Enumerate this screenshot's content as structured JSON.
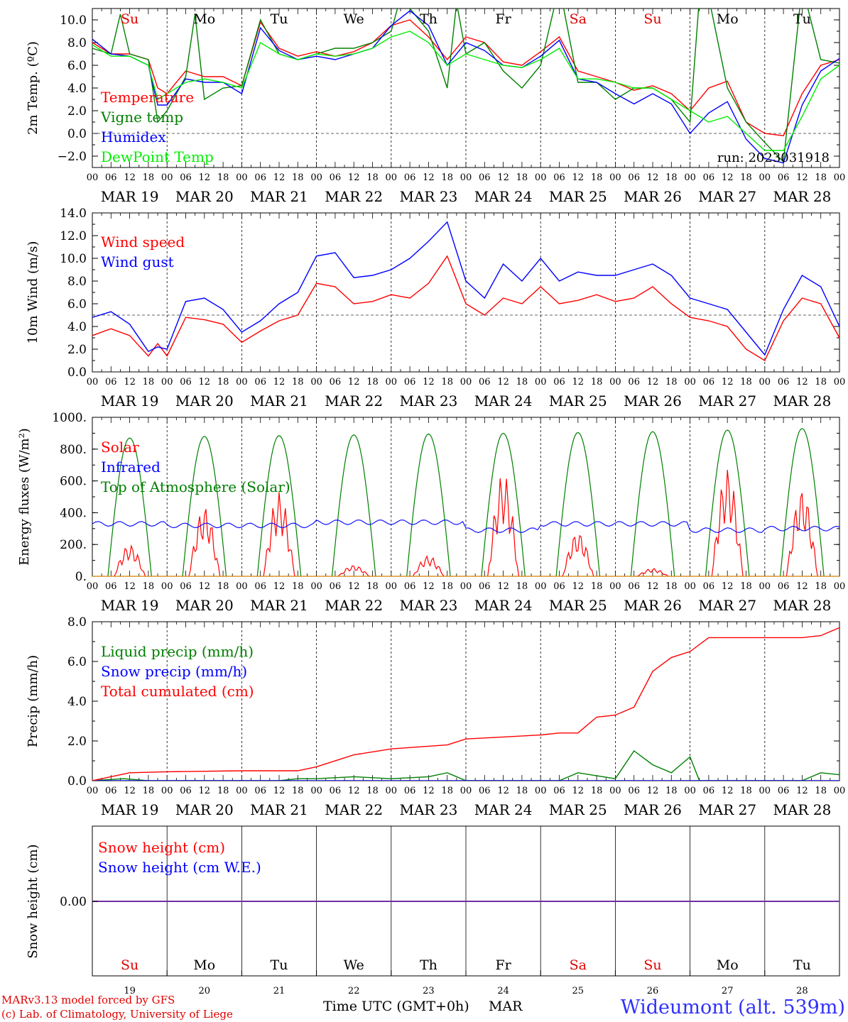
{
  "days": [
    "MAR 19",
    "MAR 20",
    "MAR 21",
    "MAR 22",
    "MAR 23",
    "MAR 24",
    "MAR 25",
    "MAR 26",
    "MAR 27",
    "MAR 28"
  ],
  "hour_ticks": [
    "00",
    "06",
    "12",
    "18"
  ],
  "hour_end": "00",
  "weekdays": [
    {
      "label": "Su",
      "color": "#e00000"
    },
    {
      "label": "Mo",
      "color": "#000000"
    },
    {
      "label": "Tu",
      "color": "#000000"
    },
    {
      "label": "We",
      "color": "#000000"
    },
    {
      "label": "Th",
      "color": "#000000"
    },
    {
      "label": "Fr",
      "color": "#000000"
    },
    {
      "label": "Sa",
      "color": "#e00000"
    },
    {
      "label": "Su",
      "color": "#e00000"
    },
    {
      "label": "Mo",
      "color": "#000000"
    },
    {
      "label": "Tu",
      "color": "#000000"
    }
  ],
  "day_numbers": [
    "19",
    "20",
    "21",
    "22",
    "23",
    "24",
    "25",
    "26",
    "27",
    "28"
  ],
  "colors": {
    "red": "#ff0000",
    "green": "#008000",
    "blue": "#0000ff",
    "lightgreen": "#00ee00",
    "purple": "#7030a0"
  },
  "footer": {
    "credit1": "MARv3.13 model forced by GFS",
    "credit2": "(c) Lab. of Climatology, University of Liege",
    "xlabel": "Time UTC (GMT+0h)",
    "month": "MAR",
    "station": "Wideumont (alt. 539m)"
  },
  "chart_data": [
    {
      "type": "line",
      "ylabel": "2m Temp. (ºC)",
      "ylim": [
        -3,
        11
      ],
      "yticks": [
        "−2.0",
        "0.0",
        "2.0",
        "4.0",
        "6.0",
        "8.0",
        "10.0"
      ],
      "ytick_values": [
        -2,
        0,
        2,
        4,
        6,
        8,
        10
      ],
      "reference_line": 0,
      "annotation": "run: 2023031918",
      "x_unit": "hours since MAR 19 00 UTC",
      "series": [
        {
          "name": "Temperature",
          "color": "#ff0000",
          "x": [
            0,
            6,
            12,
            18,
            21,
            24,
            30,
            36,
            42,
            48,
            54,
            60,
            66,
            72,
            78,
            84,
            90,
            96,
            102,
            108,
            114,
            120,
            126,
            132,
            138,
            144,
            150,
            156,
            162,
            168,
            174,
            180,
            186,
            192,
            198,
            204,
            210,
            216,
            222,
            228,
            234,
            240
          ],
          "y": [
            8.0,
            7.0,
            7.0,
            6.5,
            4.0,
            3.5,
            5.5,
            5.0,
            5.0,
            4.2,
            9.8,
            7.5,
            6.8,
            7.2,
            6.8,
            7.2,
            8.0,
            9.5,
            10.0,
            8.5,
            6.5,
            8.5,
            8.0,
            6.3,
            6.0,
            7.2,
            8.5,
            5.5,
            5.0,
            4.5,
            3.8,
            4.2,
            3.5,
            2.0,
            4.0,
            4.6,
            1.0,
            0.0,
            -0.2,
            3.5,
            6.0,
            6.5
          ]
        },
        {
          "name": "Vigne temp",
          "color": "#008000",
          "x": [
            0,
            6,
            9,
            12,
            18,
            21,
            24,
            30,
            33,
            36,
            42,
            48,
            54,
            60,
            66,
            72,
            78,
            84,
            90,
            96,
            99,
            102,
            108,
            114,
            117,
            120,
            126,
            132,
            138,
            144,
            150,
            156,
            162,
            168,
            174,
            180,
            186,
            192,
            195,
            198,
            204,
            210,
            216,
            222,
            228,
            234,
            240
          ],
          "y": [
            7.5,
            7.0,
            10.5,
            7.0,
            6.5,
            1.0,
            2.0,
            5.0,
            10.5,
            3.0,
            4.0,
            4.2,
            10.0,
            7.0,
            6.5,
            7.0,
            7.5,
            7.5,
            8.0,
            9.0,
            12.0,
            11.0,
            9.0,
            4.0,
            11.5,
            7.0,
            8.0,
            5.5,
            4.0,
            6.0,
            13.0,
            4.5,
            4.5,
            3.0,
            4.0,
            4.0,
            3.0,
            1.0,
            12.0,
            12.0,
            4.0,
            1.0,
            -0.8,
            -2.5,
            13.0,
            6.5,
            6.2
          ]
        },
        {
          "name": "Humidex",
          "color": "#0000ff",
          "x": [
            0,
            6,
            12,
            18,
            21,
            24,
            30,
            36,
            42,
            48,
            54,
            60,
            66,
            72,
            78,
            84,
            90,
            96,
            102,
            108,
            114,
            120,
            126,
            132,
            138,
            144,
            150,
            156,
            162,
            168,
            174,
            180,
            186,
            192,
            198,
            204,
            210,
            216,
            222,
            228,
            234,
            240
          ],
          "y": [
            8.3,
            7.0,
            6.8,
            6.0,
            2.5,
            2.5,
            4.8,
            4.5,
            4.5,
            3.5,
            9.3,
            7.3,
            6.5,
            6.8,
            6.5,
            7.0,
            7.5,
            9.5,
            10.8,
            9.5,
            6.0,
            8.0,
            7.3,
            6.0,
            5.8,
            6.8,
            8.2,
            4.8,
            4.5,
            3.5,
            2.6,
            3.5,
            2.6,
            0.0,
            1.8,
            2.8,
            -0.5,
            -2.2,
            -2.6,
            2.5,
            5.5,
            6.6
          ]
        },
        {
          "name": "DewPoint Temp",
          "color": "#00ee00",
          "x": [
            0,
            6,
            12,
            18,
            21,
            24,
            30,
            36,
            42,
            48,
            54,
            60,
            66,
            72,
            78,
            84,
            90,
            96,
            102,
            108,
            114,
            120,
            126,
            132,
            138,
            144,
            150,
            156,
            162,
            168,
            174,
            180,
            186,
            192,
            198,
            204,
            210,
            216,
            222,
            228,
            234,
            240
          ],
          "y": [
            7.8,
            6.8,
            6.8,
            6.0,
            3.0,
            3.5,
            4.5,
            4.8,
            4.5,
            4.0,
            8.0,
            7.0,
            6.5,
            7.0,
            6.8,
            7.0,
            7.5,
            8.5,
            9.0,
            8.0,
            6.0,
            7.0,
            6.5,
            6.0,
            5.8,
            6.5,
            7.5,
            4.8,
            4.8,
            4.5,
            4.0,
            4.0,
            3.0,
            2.0,
            1.0,
            1.5,
            0.0,
            -1.5,
            -1.5,
            1.5,
            4.8,
            6.0
          ]
        }
      ]
    },
    {
      "type": "line",
      "ylabel": "10m Wind (m/s)",
      "ylim": [
        0,
        14
      ],
      "yticks": [
        "0.0",
        "2.0",
        "4.0",
        "6.0",
        "8.0",
        "10.0",
        "12.0",
        "14.0"
      ],
      "ytick_values": [
        0,
        2,
        4,
        6,
        8,
        10,
        12,
        14
      ],
      "reference_line": 5,
      "x_unit": "hours since MAR 19 00 UTC",
      "series": [
        {
          "name": "Wind speed",
          "color": "#ff0000",
          "x": [
            0,
            6,
            12,
            18,
            21,
            24,
            30,
            36,
            42,
            48,
            54,
            60,
            66,
            72,
            78,
            84,
            90,
            96,
            102,
            108,
            114,
            120,
            126,
            132,
            138,
            144,
            150,
            156,
            162,
            168,
            174,
            180,
            186,
            192,
            198,
            204,
            210,
            216,
            222,
            228,
            234,
            240
          ],
          "y": [
            3.2,
            3.8,
            3.2,
            1.4,
            2.5,
            1.4,
            4.8,
            4.6,
            4.2,
            2.6,
            3.6,
            4.5,
            5.0,
            7.8,
            7.5,
            6.0,
            6.2,
            6.8,
            6.5,
            7.8,
            10.2,
            6.0,
            5.0,
            6.5,
            6.0,
            7.5,
            6.0,
            6.3,
            6.8,
            6.2,
            6.5,
            7.5,
            6.0,
            4.8,
            4.5,
            4.0,
            2.0,
            1.0,
            4.5,
            6.5,
            6.0,
            3.0
          ]
        },
        {
          "name": "Wind gust",
          "color": "#0000ff",
          "x": [
            0,
            6,
            12,
            18,
            21,
            24,
            30,
            36,
            42,
            48,
            54,
            60,
            66,
            72,
            78,
            84,
            90,
            96,
            102,
            108,
            114,
            120,
            126,
            132,
            138,
            144,
            150,
            156,
            162,
            168,
            174,
            180,
            186,
            192,
            198,
            204,
            210,
            216,
            222,
            228,
            234,
            240
          ],
          "y": [
            4.8,
            5.3,
            4.2,
            1.8,
            2.2,
            2.0,
            6.2,
            6.5,
            5.5,
            3.5,
            4.5,
            6.0,
            7.0,
            10.2,
            10.5,
            8.3,
            8.5,
            9.0,
            10.0,
            11.5,
            13.2,
            8.0,
            6.5,
            9.5,
            8.0,
            10.0,
            8.0,
            8.8,
            8.5,
            8.5,
            9.0,
            9.5,
            8.5,
            6.5,
            6.0,
            5.5,
            3.5,
            1.5,
            5.5,
            8.5,
            7.5,
            4.0
          ]
        }
      ]
    },
    {
      "type": "line",
      "ylabel": "Energy fluxes (W/m²)",
      "ylim": [
        0,
        1000
      ],
      "yticks": [
        "0.",
        "200.",
        "400.",
        "600.",
        "800.",
        "1000."
      ],
      "ytick_values": [
        0,
        200,
        400,
        600,
        800,
        1000
      ],
      "x_unit": "hours since MAR 19 00 UTC",
      "toa_peaks": [
        870,
        880,
        885,
        890,
        895,
        900,
        905,
        910,
        920,
        930
      ],
      "solar_peaks": [
        200,
        440,
        530,
        70,
        130,
        650,
        280,
        50,
        680,
        550
      ],
      "infrared_levels": [
        330,
        320,
        320,
        340,
        340,
        290,
        330,
        330,
        290,
        300
      ],
      "series": [
        {
          "name": "Solar",
          "color": "#ff0000"
        },
        {
          "name": "Infrared",
          "color": "#0000ff"
        },
        {
          "name": "Top of Atmosphere (Solar)",
          "color": "#008000"
        }
      ]
    },
    {
      "type": "line",
      "ylabel": "Precip (mm/h)",
      "ylim": [
        0,
        8
      ],
      "yticks": [
        "0.0",
        "2.0",
        "4.0",
        "6.0",
        "8.0"
      ],
      "ytick_values": [
        0,
        2,
        4,
        6,
        8
      ],
      "x_unit": "hours since MAR 19 00 UTC",
      "series": [
        {
          "name": "Liquid precip (mm/h)",
          "color": "#008000",
          "x": [
            0,
            10,
            14,
            18,
            24,
            60,
            66,
            72,
            84,
            96,
            108,
            114,
            120,
            150,
            156,
            168,
            174,
            180,
            186,
            192,
            195,
            198,
            204,
            228,
            234,
            240
          ],
          "y": [
            0,
            0.1,
            0.05,
            0,
            0,
            0,
            0.1,
            0.1,
            0.2,
            0.1,
            0.2,
            0.4,
            0,
            0,
            0.4,
            0.1,
            1.5,
            0.8,
            0.4,
            1.2,
            0,
            0,
            0,
            0,
            0.4,
            0.3
          ]
        },
        {
          "name": "Snow precip (mm/h)",
          "color": "#0000ff",
          "x": [
            0,
            240
          ],
          "y": [
            0,
            0
          ]
        },
        {
          "name": "Total cumulated (cm)",
          "color": "#ff0000",
          "x": [
            0,
            12,
            24,
            48,
            66,
            72,
            84,
            96,
            114,
            120,
            132,
            144,
            150,
            156,
            162,
            168,
            174,
            180,
            186,
            192,
            198,
            204,
            228,
            234,
            240
          ],
          "y": [
            0,
            0.4,
            0.45,
            0.5,
            0.5,
            0.7,
            1.3,
            1.6,
            1.8,
            2.1,
            2.2,
            2.3,
            2.4,
            2.4,
            3.2,
            3.3,
            3.7,
            5.5,
            6.2,
            6.5,
            7.2,
            7.2,
            7.2,
            7.3,
            7.7
          ]
        }
      ]
    },
    {
      "type": "line",
      "ylabel": "Snow height (cm)",
      "yticks": [
        "0.00"
      ],
      "series": [
        {
          "name": "Snow height (cm)",
          "color": "#ff0000",
          "x": [
            0,
            240
          ],
          "y": [
            0,
            0
          ]
        },
        {
          "name": "Snow height (cm W.E.)",
          "color": "#0000ff",
          "x": [
            0,
            240
          ],
          "y": [
            0,
            0
          ]
        }
      ]
    }
  ]
}
